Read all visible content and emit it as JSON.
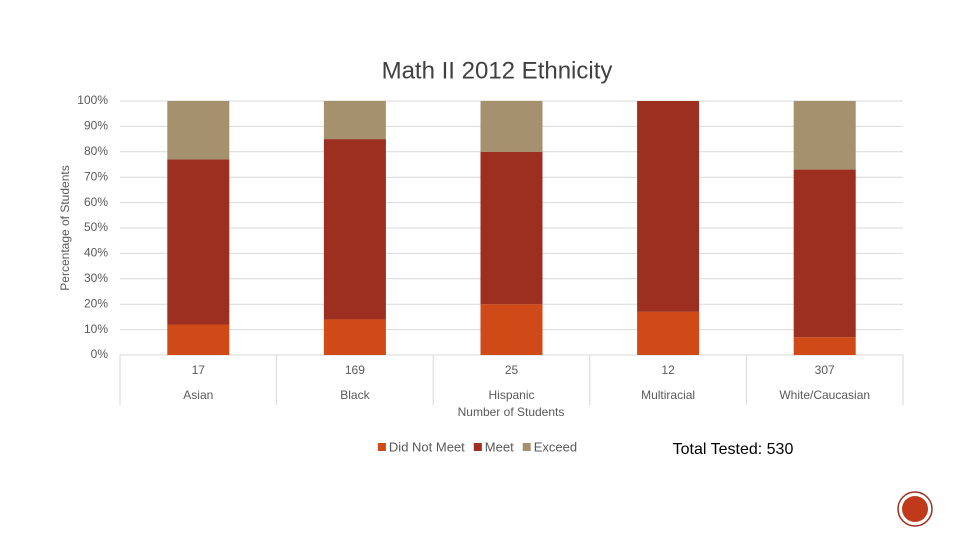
{
  "chart_data": {
    "type": "stacked_bar",
    "title": "Math II 2012 Ethnicity",
    "y_label": "Percentage of Students",
    "x_label": "Number of Students",
    "categories": [
      "Asian",
      "Black",
      "Hispanic",
      "Multiracial",
      "White/Caucasian"
    ],
    "student_counts": [
      17,
      169,
      25,
      12,
      307
    ],
    "series": [
      {
        "name": "Did Not Meet",
        "color": "#d04a17",
        "values": [
          12,
          14,
          20,
          17,
          7
        ]
      },
      {
        "name": "Meet",
        "color": "#9c2f1f",
        "values": [
          65,
          71,
          60,
          83,
          66
        ]
      },
      {
        "name": "Exceed",
        "color": "#a5916d",
        "values": [
          23,
          15,
          20,
          0,
          27
        ]
      }
    ],
    "ylim": [
      0,
      100
    ],
    "yticks": [
      {
        "value": 0,
        "label": "0%"
      },
      {
        "value": 10,
        "label": "10%"
      },
      {
        "value": 20,
        "label": "20%"
      },
      {
        "value": 30,
        "label": "30%"
      },
      {
        "value": 40,
        "label": "40%"
      },
      {
        "value": 50,
        "label": "50%"
      },
      {
        "value": 60,
        "label": "60%"
      },
      {
        "value": 70,
        "label": "70%"
      },
      {
        "value": 80,
        "label": "80%"
      },
      {
        "value": 90,
        "label": "90%"
      },
      {
        "value": 100,
        "label": "100%"
      }
    ],
    "grid": true,
    "legend": "bottom",
    "annotation": "Total Tested: 530"
  }
}
